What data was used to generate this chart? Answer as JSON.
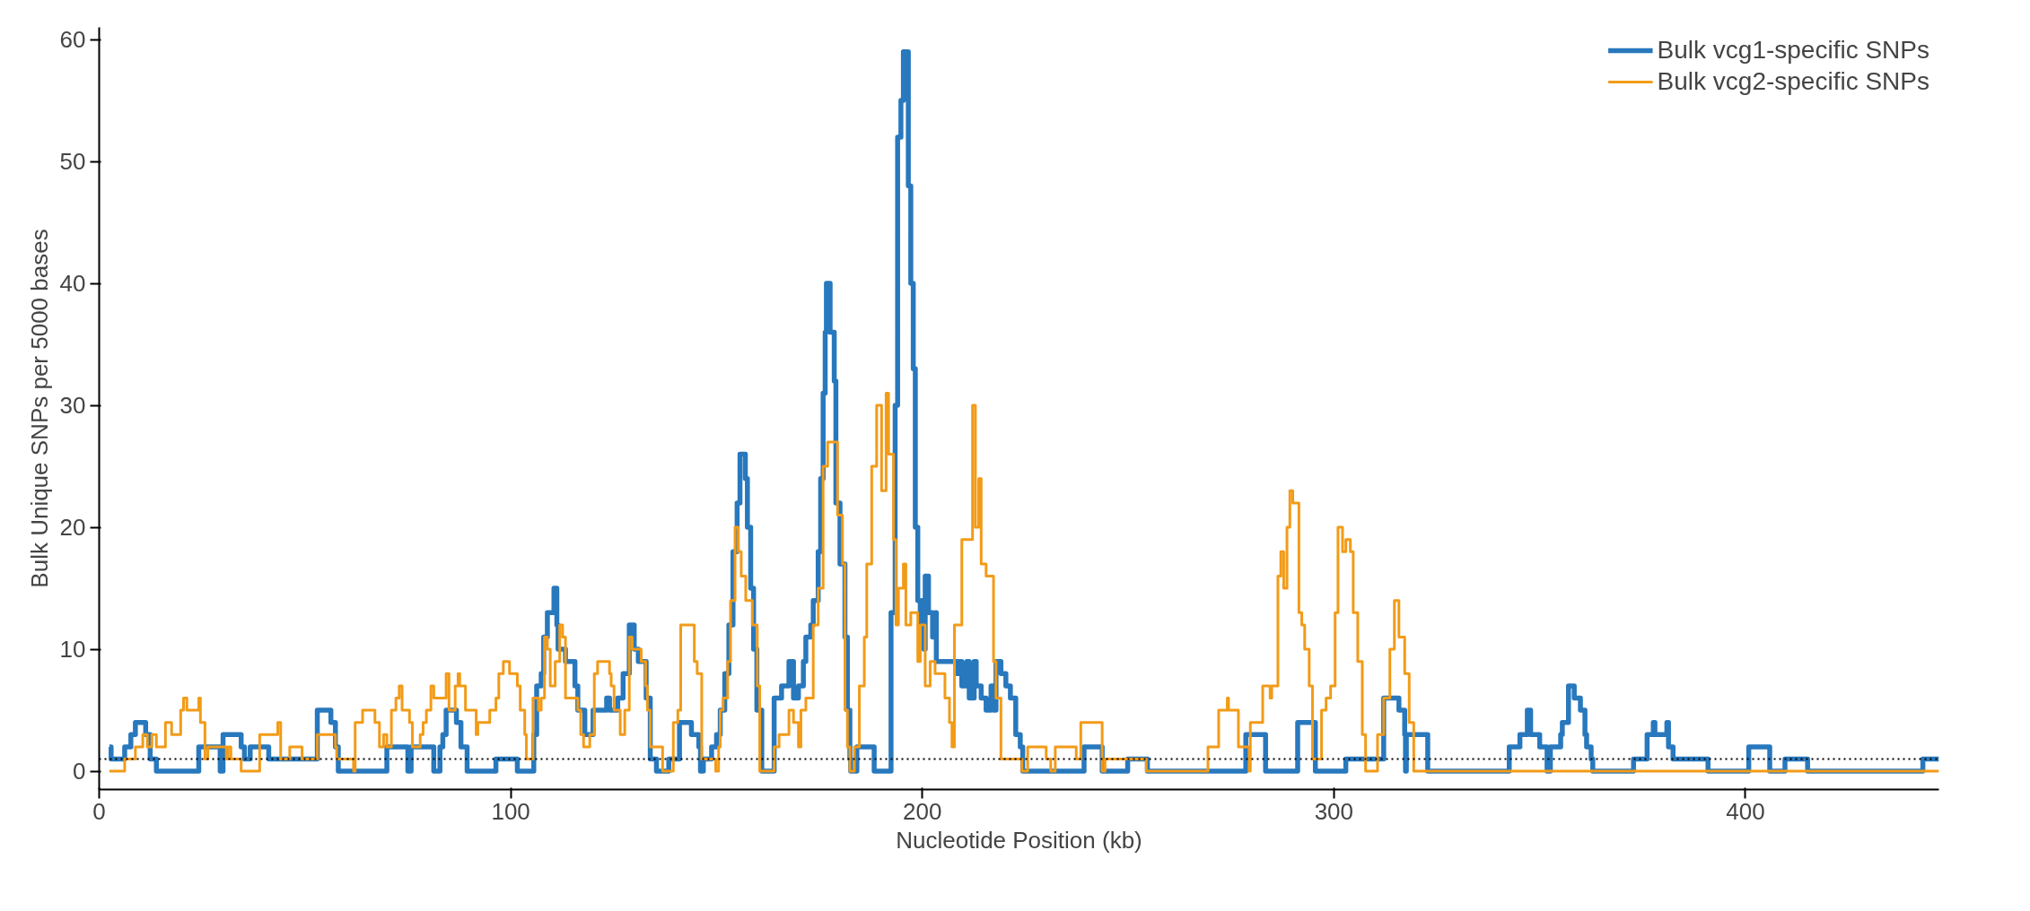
{
  "chart_data": {
    "type": "step",
    "xlabel": "Nucleotide Position (kb)",
    "ylabel": "Bulk Unique SNPs per 5000 bases",
    "xlim": [
      0,
      447
    ],
    "ylim": [
      -1.5,
      61
    ],
    "xticks": [
      0,
      100,
      200,
      300,
      400
    ],
    "yticks": [
      0,
      10,
      20,
      30,
      40,
      50,
      60
    ],
    "grid": false,
    "legend": "top right",
    "line_style": "solid",
    "marker": "none",
    "ref_lines": [
      {
        "axis": "y",
        "value": 1,
        "color": "#000000",
        "line_style": "dotted"
      }
    ],
    "series": [
      {
        "name": "Bulk vcg1-specific SNPs",
        "color": "#2878bd",
        "x": [
          2.5,
          2.9,
          6.2,
          7.7,
          8.8,
          11.3,
          12.4,
          13.9,
          24.2,
          29.4,
          30.1,
          34.5,
          35.3,
          36.7,
          41.2,
          53,
          56.3,
          57.4,
          58.1,
          69.9,
          75,
          75.8,
          81.3,
          82.8,
          83.5,
          84.3,
          86.8,
          87.9,
          89.4,
          96.4,
          101.6,
          105.6,
          106.3,
          107.4,
          108,
          108.9,
          110.5,
          111.2,
          111.5,
          113.3,
          115.6,
          116.3,
          118,
          120,
          123.3,
          124,
          126,
          127.3,
          128.8,
          130,
          131,
          132.9,
          133.9,
          135.4,
          138.4,
          141,
          143.9,
          145.7,
          146.1,
          146.8,
          148.8,
          150,
          150.9,
          152,
          153,
          154,
          155,
          155.7,
          157,
          157.5,
          158.3,
          159,
          159.8,
          161,
          164,
          165.8,
          167.6,
          168.7,
          169.9,
          171.1,
          171.7,
          172.9,
          173.5,
          174.7,
          175.3,
          175.9,
          176.4,
          176.7,
          177.6,
          178.6,
          179,
          180,
          181.2,
          181.8,
          182.4,
          182.6,
          184.1,
          188.3,
          192.4,
          193.4,
          194,
          194.8,
          195.4,
          196.6,
          197.2,
          197.8,
          198.3,
          198.9,
          199.5,
          200.1,
          200.4,
          200.7,
          201.5,
          202.5,
          203.1,
          203.4,
          204.9,
          208.4,
          209,
          209.6,
          210.8,
          211.4,
          212.6,
          213.1,
          214.3,
          215.5,
          216.7,
          217.3,
          217.9,
          219.1,
          220.3,
          221.4,
          222.7,
          223.8,
          224.4,
          239.3,
          243.7,
          249.9,
          254.7,
          278.6,
          283.4,
          291.2,
          295.5,
          302.9,
          312.1,
          315.8,
          317.2,
          317.4,
          317.6,
          322.8,
          342.6,
          345.2,
          347,
          347.8,
          350,
          351.8,
          352.6,
          355.1,
          355.5,
          357,
          358.4,
          359.9,
          361,
          361.4,
          362.5,
          362.9,
          372.8,
          376.1,
          377.6,
          378,
          380.9,
          381.3,
          382.4,
          390.9,
          400.8,
          405.9,
          409.6,
          415.1,
          443.1,
          447
        ],
        "values": [
          2,
          1,
          2,
          3,
          4,
          3,
          1,
          0,
          2,
          0,
          3,
          2,
          1,
          2,
          1,
          5,
          4,
          2,
          0,
          2,
          0,
          2,
          0,
          2,
          3,
          5,
          4,
          2,
          0,
          1,
          0,
          3,
          7,
          8,
          11,
          13,
          15,
          12,
          10,
          9,
          7,
          5,
          3,
          5,
          6,
          5,
          6,
          8,
          12,
          10,
          9,
          6,
          1,
          0,
          1,
          4,
          3,
          2,
          0,
          1,
          2,
          3,
          5,
          8,
          12,
          18,
          22,
          26,
          24,
          20,
          15,
          10,
          5,
          0,
          6,
          7,
          9,
          6,
          7,
          9,
          11,
          12,
          14,
          18,
          24,
          31,
          36,
          40,
          36,
          32,
          22,
          17,
          11,
          5,
          1,
          0,
          2,
          0,
          13,
          30,
          52,
          55,
          59,
          48,
          40,
          33,
          20,
          14,
          12,
          14,
          10,
          16,
          13,
          11,
          13,
          9,
          9,
          8,
          9,
          7,
          9,
          6,
          9,
          7,
          6,
          5,
          7,
          5,
          9,
          8,
          7,
          6,
          3,
          2,
          0,
          2,
          0,
          1,
          0,
          3,
          0,
          4,
          0,
          1,
          6,
          5,
          3,
          0,
          3,
          0,
          2,
          3,
          5,
          3,
          2,
          0,
          2,
          3,
          4,
          7,
          6,
          5,
          3,
          2,
          1,
          0,
          1,
          3,
          4,
          3,
          4,
          2,
          1,
          0,
          2,
          0,
          1,
          0,
          1,
          1
        ]
      },
      {
        "name": "Bulk vcg2-specific SNPs",
        "color": "#f29b18",
        "x": [
          2.5,
          6.2,
          8.8,
          10.6,
          11.7,
          12.8,
          13.9,
          16.1,
          17.6,
          19.8,
          20.5,
          21.3,
          24.2,
          24.6,
          25.7,
          26.4,
          30.9,
          31.3,
          32,
          34.5,
          39,
          43.4,
          44.1,
          46.3,
          49.3,
          53,
          57.4,
          57.7,
          61.8,
          62.2,
          64,
          67,
          68.1,
          69.1,
          69.9,
          71,
          72.1,
          72.9,
          73.6,
          75.4,
          76.1,
          78,
          78.7,
          79.5,
          80.6,
          81.3,
          84.3,
          85,
          86.5,
          87.2,
          87.6,
          89,
          91.6,
          92,
          94.9,
          96.4,
          97.1,
          98.2,
          99.7,
          101.6,
          102.3,
          103.4,
          103.8,
          105.4,
          106.7,
          107.4,
          108.2,
          108.9,
          109.6,
          110.8,
          111.9,
          112.6,
          113.3,
          116.3,
          117,
          117.7,
          119.2,
          120.3,
          121.1,
          124,
          124.4,
          125.1,
          126.6,
          127.7,
          128.8,
          129.5,
          131.7,
          132.8,
          133.2,
          133.9,
          136.9,
          139.5,
          140.6,
          141.3,
          144.6,
          145.3,
          146.4,
          149.8,
          150.5,
          150.9,
          151.6,
          152.7,
          153.4,
          154.5,
          155.3,
          156,
          157.1,
          158.7,
          159.9,
          160.5,
          164,
          165.2,
          167.6,
          168.7,
          169.9,
          170.5,
          171.7,
          173.5,
          174.7,
          175.9,
          177,
          179.4,
          180.6,
          181.2,
          181.8,
          182.4,
          183.5,
          184.7,
          185.9,
          186.5,
          187.7,
          188.9,
          190.1,
          191.2,
          191.8,
          193,
          193.6,
          194.2,
          195.4,
          196,
          197.2,
          198.9,
          199.5,
          200.7,
          201.9,
          203.1,
          205.5,
          206.6,
          207.2,
          207.8,
          209.6,
          212.2,
          212.9,
          213.7,
          214.3,
          215.5,
          217.3,
          217.9,
          219.1,
          224.2,
          225.6,
          230.1,
          231.2,
          232.3,
          237.4,
          238.5,
          243.7,
          244.4,
          254.4,
          269.4,
          272,
          274.1,
          274.4,
          276.8,
          279.4,
          279.7,
          282.7,
          284.5,
          284.9,
          286.4,
          287.1,
          287.8,
          288.6,
          289.3,
          290,
          291.5,
          292.2,
          292.9,
          294,
          294.8,
          297,
          298.1,
          299.2,
          300.3,
          301,
          302.1,
          302.9,
          304,
          304.7,
          305.8,
          306.9,
          307.7,
          310.6,
          312.1,
          313.6,
          314.7,
          315.8,
          317.2,
          318.3,
          319.4,
          447
        ],
        "values": [
          0,
          1,
          2,
          3,
          2,
          3,
          2,
          4,
          3,
          5,
          6,
          5,
          6,
          4,
          1,
          2,
          1,
          2,
          1,
          0,
          3,
          4,
          1,
          2,
          1,
          3,
          2,
          1,
          0,
          4,
          5,
          4,
          2,
          3,
          2,
          5,
          6,
          7,
          5,
          4,
          2,
          3,
          4,
          5,
          7,
          6,
          8,
          5,
          7,
          8,
          7,
          5,
          3,
          4,
          5,
          6,
          8,
          9,
          8,
          7,
          5,
          3,
          1,
          6,
          5,
          6,
          11,
          10,
          7,
          9,
          12,
          11,
          6,
          5,
          3,
          2,
          3,
          8,
          9,
          8,
          7,
          5,
          3,
          5,
          11,
          10,
          9,
          7,
          5,
          2,
          0,
          4,
          5,
          12,
          9,
          8,
          1,
          0,
          2,
          5,
          6,
          9,
          14,
          20,
          18,
          16,
          14,
          12,
          7,
          0,
          2,
          3,
          5,
          4,
          2,
          5,
          6,
          12,
          15,
          25,
          27,
          21,
          17,
          5,
          2,
          0,
          2,
          7,
          11,
          17,
          25,
          30,
          23,
          31,
          26,
          19,
          12,
          15,
          17,
          12,
          13,
          9,
          12,
          7,
          9,
          8,
          6,
          4,
          2,
          12,
          19,
          30,
          20,
          24,
          17,
          16,
          9,
          6,
          1,
          0,
          2,
          1,
          0,
          2,
          1,
          4,
          0,
          1,
          0,
          2,
          5,
          6,
          5,
          2,
          0,
          4,
          7,
          6,
          7,
          16,
          18,
          15,
          20,
          23,
          22,
          13,
          12,
          10,
          7,
          1,
          5,
          6,
          7,
          13,
          20,
          18,
          19,
          18,
          13,
          9,
          3,
          0,
          3,
          6,
          10,
          14,
          11,
          8,
          4,
          0,
          0
        ]
      }
    ]
  }
}
